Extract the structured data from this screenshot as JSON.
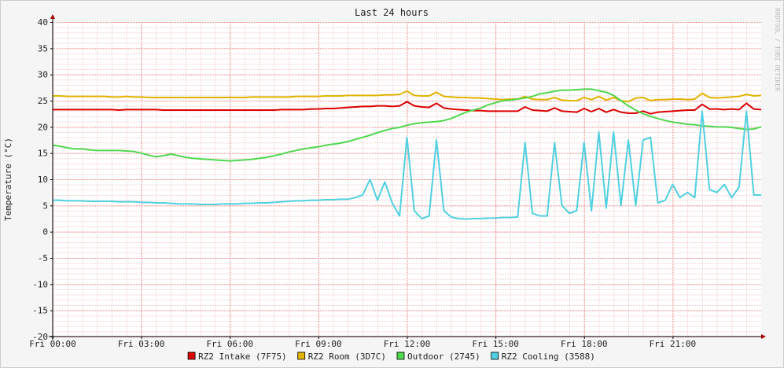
{
  "chart_data": {
    "type": "line",
    "title": "Last 24 hours",
    "ylabel": "Temperature (°C)",
    "watermark": "RRDTOOL / TOBI OETIKER",
    "xlim": [
      0,
      24
    ],
    "ylim": [
      -20,
      40
    ],
    "xticks": [
      {
        "value": 0,
        "label": "Fri 00:00"
      },
      {
        "value": 3,
        "label": "Fri 03:00"
      },
      {
        "value": 6,
        "label": "Fri 06:00"
      },
      {
        "value": 9,
        "label": "Fri 09:00"
      },
      {
        "value": 12,
        "label": "Fri 12:00"
      },
      {
        "value": 15,
        "label": "Fri 15:00"
      },
      {
        "value": 18,
        "label": "Fri 18:00"
      },
      {
        "value": 21,
        "label": "Fri 21:00"
      }
    ],
    "yticks": [
      -20,
      -15,
      -10,
      -5,
      0,
      5,
      10,
      15,
      20,
      25,
      30,
      35,
      40
    ],
    "grid": true,
    "x": [
      0,
      0.25,
      0.5,
      0.75,
      1,
      1.25,
      1.5,
      1.75,
      2,
      2.25,
      2.5,
      2.75,
      3,
      3.25,
      3.5,
      3.75,
      4,
      4.25,
      4.5,
      4.75,
      5,
      5.25,
      5.5,
      5.75,
      6,
      6.25,
      6.5,
      6.75,
      7,
      7.25,
      7.5,
      7.75,
      8,
      8.25,
      8.5,
      8.75,
      9,
      9.25,
      9.5,
      9.75,
      10,
      10.25,
      10.5,
      10.75,
      11,
      11.25,
      11.5,
      11.75,
      12,
      12.25,
      12.5,
      12.75,
      13,
      13.25,
      13.5,
      13.75,
      14,
      14.25,
      14.5,
      14.75,
      15,
      15.25,
      15.5,
      15.75,
      16,
      16.25,
      16.5,
      16.75,
      17,
      17.25,
      17.5,
      17.75,
      18,
      18.25,
      18.5,
      18.75,
      19,
      19.25,
      19.5,
      19.75,
      20,
      20.25,
      20.5,
      20.75,
      21,
      21.25,
      21.5,
      21.75,
      22,
      22.25,
      22.5,
      22.75,
      23,
      23.25,
      23.5,
      23.75,
      24
    ],
    "series": [
      {
        "name": "RZ2 Intake (7F75)",
        "color": "#dd0000",
        "values": [
          23.3,
          23.3,
          23.3,
          23.3,
          23.3,
          23.3,
          23.3,
          23.3,
          23.3,
          23.2,
          23.3,
          23.3,
          23.3,
          23.3,
          23.3,
          23.2,
          23.2,
          23.2,
          23.2,
          23.2,
          23.2,
          23.2,
          23.2,
          23.2,
          23.2,
          23.2,
          23.2,
          23.2,
          23.2,
          23.2,
          23.2,
          23.3,
          23.3,
          23.3,
          23.3,
          23.4,
          23.4,
          23.5,
          23.5,
          23.6,
          23.7,
          23.8,
          23.9,
          23.9,
          24.0,
          24.0,
          23.9,
          24.0,
          24.8,
          24.0,
          23.8,
          23.7,
          24.5,
          23.6,
          23.4,
          23.3,
          23.2,
          23.1,
          23.1,
          23.0,
          23.0,
          23.0,
          23.0,
          23.0,
          23.8,
          23.2,
          23.1,
          23.0,
          23.6,
          23.0,
          22.9,
          22.8,
          23.5,
          22.9,
          23.5,
          22.8,
          23.3,
          22.8,
          22.6,
          22.6,
          23.0,
          22.5,
          22.8,
          22.9,
          23.0,
          23.1,
          23.2,
          23.2,
          24.3,
          23.4,
          23.4,
          23.3,
          23.4,
          23.3,
          24.5,
          23.4,
          23.3
        ]
      },
      {
        "name": "RZ2 Room (3D7C)",
        "color": "#e0b400",
        "values": [
          25.9,
          25.9,
          25.8,
          25.8,
          25.8,
          25.8,
          25.8,
          25.8,
          25.7,
          25.7,
          25.8,
          25.7,
          25.7,
          25.6,
          25.6,
          25.6,
          25.6,
          25.6,
          25.6,
          25.6,
          25.6,
          25.6,
          25.6,
          25.6,
          25.6,
          25.6,
          25.6,
          25.7,
          25.7,
          25.7,
          25.7,
          25.7,
          25.7,
          25.8,
          25.8,
          25.8,
          25.8,
          25.9,
          25.9,
          25.9,
          26.0,
          26.0,
          26.0,
          26.0,
          26.0,
          26.1,
          26.1,
          26.2,
          26.8,
          26.0,
          25.9,
          25.9,
          26.6,
          25.8,
          25.7,
          25.6,
          25.6,
          25.5,
          25.5,
          25.4,
          25.3,
          25.2,
          25.3,
          25.3,
          25.8,
          25.3,
          25.2,
          25.2,
          25.6,
          25.1,
          25.0,
          25.0,
          25.6,
          25.2,
          25.8,
          25.1,
          25.6,
          25.0,
          24.8,
          25.5,
          25.6,
          25.0,
          25.2,
          25.2,
          25.3,
          25.3,
          25.2,
          25.3,
          26.4,
          25.6,
          25.5,
          25.6,
          25.7,
          25.8,
          26.2,
          25.9,
          26.0
        ]
      },
      {
        "name": "Outdoor (2745)",
        "color": "#50d850",
        "values": [
          16.5,
          16.3,
          16.0,
          15.8,
          15.8,
          15.6,
          15.5,
          15.5,
          15.5,
          15.5,
          15.4,
          15.3,
          15.0,
          14.6,
          14.3,
          14.5,
          14.8,
          14.5,
          14.2,
          14.0,
          13.9,
          13.8,
          13.7,
          13.6,
          13.5,
          13.6,
          13.7,
          13.8,
          14.0,
          14.2,
          14.5,
          14.8,
          15.2,
          15.5,
          15.8,
          16.0,
          16.2,
          16.5,
          16.7,
          16.9,
          17.2,
          17.6,
          18.0,
          18.4,
          18.9,
          19.3,
          19.7,
          19.9,
          20.3,
          20.6,
          20.8,
          20.9,
          21.0,
          21.2,
          21.6,
          22.2,
          22.8,
          23.2,
          23.6,
          24.2,
          24.6,
          25.0,
          25.1,
          25.3,
          25.5,
          25.8,
          26.3,
          26.5,
          26.8,
          27.0,
          27.0,
          27.1,
          27.2,
          27.2,
          26.9,
          26.6,
          26.0,
          25.0,
          24.0,
          23.2,
          22.5,
          22.0,
          21.6,
          21.2,
          20.9,
          20.7,
          20.5,
          20.4,
          20.2,
          20.1,
          20.0,
          20.0,
          19.9,
          19.7,
          19.5,
          19.6,
          20.0
        ]
      },
      {
        "name": "RZ2 Cooling (3588)",
        "color": "#50d0e0",
        "values": [
          6.0,
          6.0,
          5.9,
          5.9,
          5.9,
          5.8,
          5.8,
          5.8,
          5.8,
          5.7,
          5.7,
          5.7,
          5.6,
          5.6,
          5.5,
          5.5,
          5.4,
          5.3,
          5.3,
          5.3,
          5.2,
          5.2,
          5.2,
          5.3,
          5.3,
          5.3,
          5.4,
          5.4,
          5.5,
          5.5,
          5.6,
          5.7,
          5.8,
          5.9,
          5.9,
          6.0,
          6.0,
          6.1,
          6.1,
          6.2,
          6.2,
          6.5,
          7.0,
          10.0,
          6.0,
          9.5,
          5.5,
          3.0,
          18.0,
          4.0,
          2.5,
          3.0,
          17.5,
          4.0,
          2.8,
          2.5,
          2.4,
          2.5,
          2.5,
          2.6,
          2.6,
          2.7,
          2.7,
          2.8,
          17.0,
          3.5,
          3.0,
          3.0,
          17.0,
          5.0,
          3.5,
          4.0,
          17.0,
          4.0,
          19.0,
          4.5,
          19.0,
          5.0,
          17.5,
          5.0,
          17.5,
          18.0,
          5.5,
          6.0,
          9.0,
          6.5,
          7.5,
          6.5,
          23.0,
          8.0,
          7.5,
          9.0,
          6.5,
          8.5,
          23.0,
          7.0,
          7.0
        ]
      }
    ]
  }
}
